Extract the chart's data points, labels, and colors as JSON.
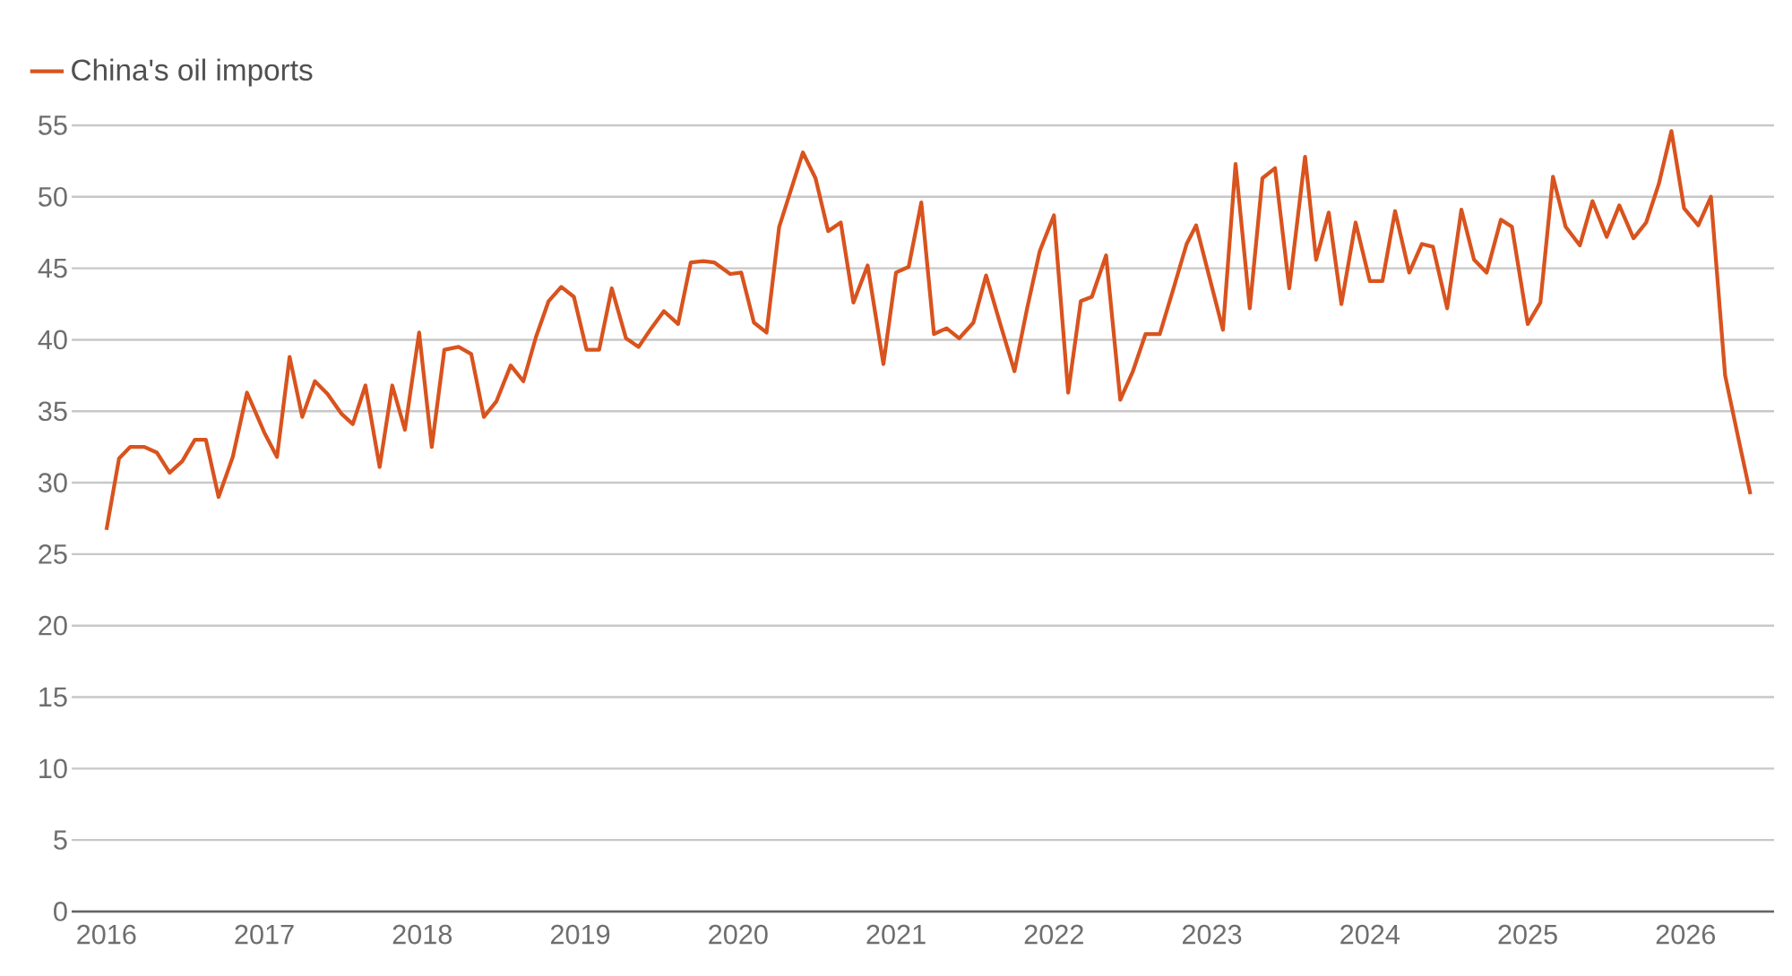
{
  "chart_data": {
    "type": "line",
    "x": [
      2016.0,
      2016.08,
      2016.15,
      2016.24,
      2016.32,
      2016.4,
      2016.48,
      2016.56,
      2016.63,
      2016.71,
      2016.8,
      2016.89,
      2017.0,
      2017.08,
      2017.16,
      2017.24,
      2017.32,
      2017.4,
      2017.49,
      2017.56,
      2017.64,
      2017.73,
      2017.81,
      2017.89,
      2017.98,
      2018.06,
      2018.14,
      2018.23,
      2018.31,
      2018.39,
      2018.47,
      2018.56,
      2018.64,
      2018.72,
      2018.8,
      2018.88,
      2018.96,
      2019.04,
      2019.12,
      2019.2,
      2019.29,
      2019.37,
      2019.45,
      2019.53,
      2019.62,
      2019.7,
      2019.78,
      2019.85,
      2019.95,
      2020.02,
      2020.1,
      2020.18,
      2020.26,
      2020.41,
      2020.49,
      2020.57,
      2020.65,
      2020.73,
      2020.82,
      2020.92,
      2021.0,
      2021.08,
      2021.16,
      2021.24,
      2021.32,
      2021.4,
      2021.49,
      2021.57,
      2021.66,
      2021.75,
      2021.83,
      2021.91,
      2022.0,
      2022.09,
      2022.17,
      2022.24,
      2022.33,
      2022.42,
      2022.5,
      2022.58,
      2022.67,
      2022.76,
      2022.84,
      2022.9,
      2023.0,
      2023.07,
      2023.15,
      2023.24,
      2023.32,
      2023.4,
      2023.49,
      2023.59,
      2023.66,
      2023.74,
      2023.82,
      2023.91,
      2024.0,
      2024.08,
      2024.16,
      2024.25,
      2024.33,
      2024.4,
      2024.49,
      2024.58,
      2024.66,
      2024.74,
      2024.83,
      2024.9,
      2025.0,
      2025.08,
      2025.16,
      2025.24,
      2025.33,
      2025.41,
      2025.5,
      2025.58,
      2025.67,
      2025.75,
      2025.83,
      2025.91,
      2025.99,
      2026.08,
      2026.16,
      2026.25,
      2026.33,
      2026.41
    ],
    "series": [
      {
        "name": "China's oil imports",
        "color": "#d9531e",
        "values": [
          26.7,
          31.7,
          32.5,
          32.5,
          32.1,
          30.7,
          31.5,
          33.0,
          33.0,
          29.0,
          31.8,
          36.3,
          33.5,
          31.8,
          38.8,
          34.6,
          37.1,
          36.2,
          34.8,
          34.1,
          36.8,
          31.1,
          36.8,
          33.7,
          40.5,
          32.5,
          39.3,
          39.5,
          39.0,
          34.6,
          35.7,
          38.2,
          37.1,
          40.2,
          42.7,
          43.7,
          43.0,
          39.3,
          39.3,
          43.6,
          40.1,
          39.5,
          40.8,
          42.0,
          41.1,
          45.4,
          45.5,
          45.4,
          44.6,
          44.7,
          41.2,
          40.5,
          47.9,
          53.1,
          51.3,
          47.6,
          48.2,
          42.6,
          45.2,
          38.3,
          44.7,
          45.1,
          49.6,
          40.4,
          40.8,
          40.1,
          41.2,
          44.5,
          41.1,
          37.8,
          42.2,
          46.2,
          48.7,
          36.3,
          42.7,
          43.0,
          45.9,
          35.8,
          37.8,
          40.4,
          40.4,
          43.7,
          46.7,
          48.0,
          43.7,
          40.7,
          52.3,
          42.2,
          51.3,
          52.0,
          43.6,
          52.8,
          45.6,
          48.9,
          42.5,
          48.2,
          44.1,
          44.1,
          49.0,
          44.7,
          46.7,
          46.5,
          42.2,
          49.1,
          45.6,
          44.7,
          48.4,
          47.9,
          41.1,
          42.6,
          51.4,
          47.9,
          46.6,
          49.7,
          47.2,
          49.4,
          47.1,
          48.2,
          50.9,
          54.6,
          49.2,
          48.0,
          50.0,
          37.5,
          33.3,
          29.2
        ]
      }
    ],
    "xlim": [
      2015.78,
      2026.56
    ],
    "ylim": [
      0,
      55
    ],
    "xticks": [
      2016,
      2017,
      2018,
      2019,
      2020,
      2021,
      2022,
      2023,
      2024,
      2025,
      2026
    ],
    "yticks": [
      0,
      5,
      10,
      15,
      20,
      25,
      30,
      35,
      40,
      45,
      50,
      55
    ],
    "grid": "y",
    "legend": "top left"
  }
}
